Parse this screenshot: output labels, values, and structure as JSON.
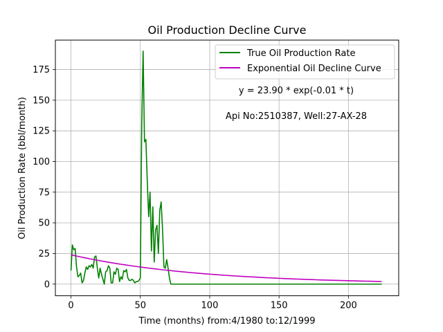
{
  "chart_data": {
    "type": "line",
    "title": "Oil Production Decline Curve",
    "xlabel": "Time (months) from:4/1980 to:12/1999",
    "ylabel": "Oil Production Rate (bbl/month)",
    "xlim": [
      -11.25,
      236.25
    ],
    "ylim": [
      -9.5,
      199
    ],
    "x_ticks": [
      0,
      50,
      100,
      150,
      200
    ],
    "y_ticks": [
      0,
      25,
      50,
      75,
      100,
      125,
      150,
      175
    ],
    "grid": true,
    "legend_position": "top-right",
    "annotations": [
      "y = 23.90 * exp(-0.01 * t)",
      "Api No:2510387, Well:27-AX-28"
    ],
    "series": [
      {
        "name": "True Oil Production Rate",
        "color": "#008000",
        "x": [
          0,
          1,
          2,
          3,
          4,
          5,
          6,
          7,
          8,
          9,
          10,
          11,
          12,
          13,
          14,
          15,
          16,
          17,
          18,
          19,
          20,
          21,
          22,
          23,
          24,
          25,
          26,
          27,
          28,
          29,
          30,
          31,
          32,
          33,
          34,
          35,
          36,
          37,
          38,
          39,
          40,
          41,
          42,
          43,
          44,
          45,
          46,
          47,
          48,
          49,
          50,
          51,
          52,
          53,
          54,
          55,
          56,
          57,
          58,
          59,
          60,
          61,
          62,
          63,
          64,
          65,
          66,
          67,
          68,
          69,
          70,
          71,
          72,
          73,
          74,
          75,
          80,
          100,
          150,
          200,
          224
        ],
        "y": [
          11,
          32,
          28,
          29,
          14,
          6,
          7,
          9,
          1,
          3,
          9,
          14,
          12,
          15,
          14,
          16,
          13,
          22,
          23,
          13,
          5,
          13,
          8,
          4,
          0,
          10,
          11,
          15,
          13,
          1,
          1,
          10,
          8,
          13,
          12,
          2,
          6,
          4,
          11,
          10,
          12,
          5,
          3,
          3,
          4,
          3,
          1,
          2,
          2,
          3,
          5,
          130,
          190,
          116,
          118,
          84,
          55,
          75,
          27,
          63,
          18,
          44,
          48,
          25,
          60,
          67,
          45,
          14,
          13,
          20,
          13,
          5,
          0,
          0,
          0,
          0,
          0,
          0,
          0,
          0,
          0
        ]
      },
      {
        "name": "Exponential Oil Decline Curve",
        "color": "#bf00bf",
        "model": {
          "a": 23.9,
          "b": 0.0108,
          "x_start": 0,
          "x_end": 224
        }
      }
    ]
  }
}
